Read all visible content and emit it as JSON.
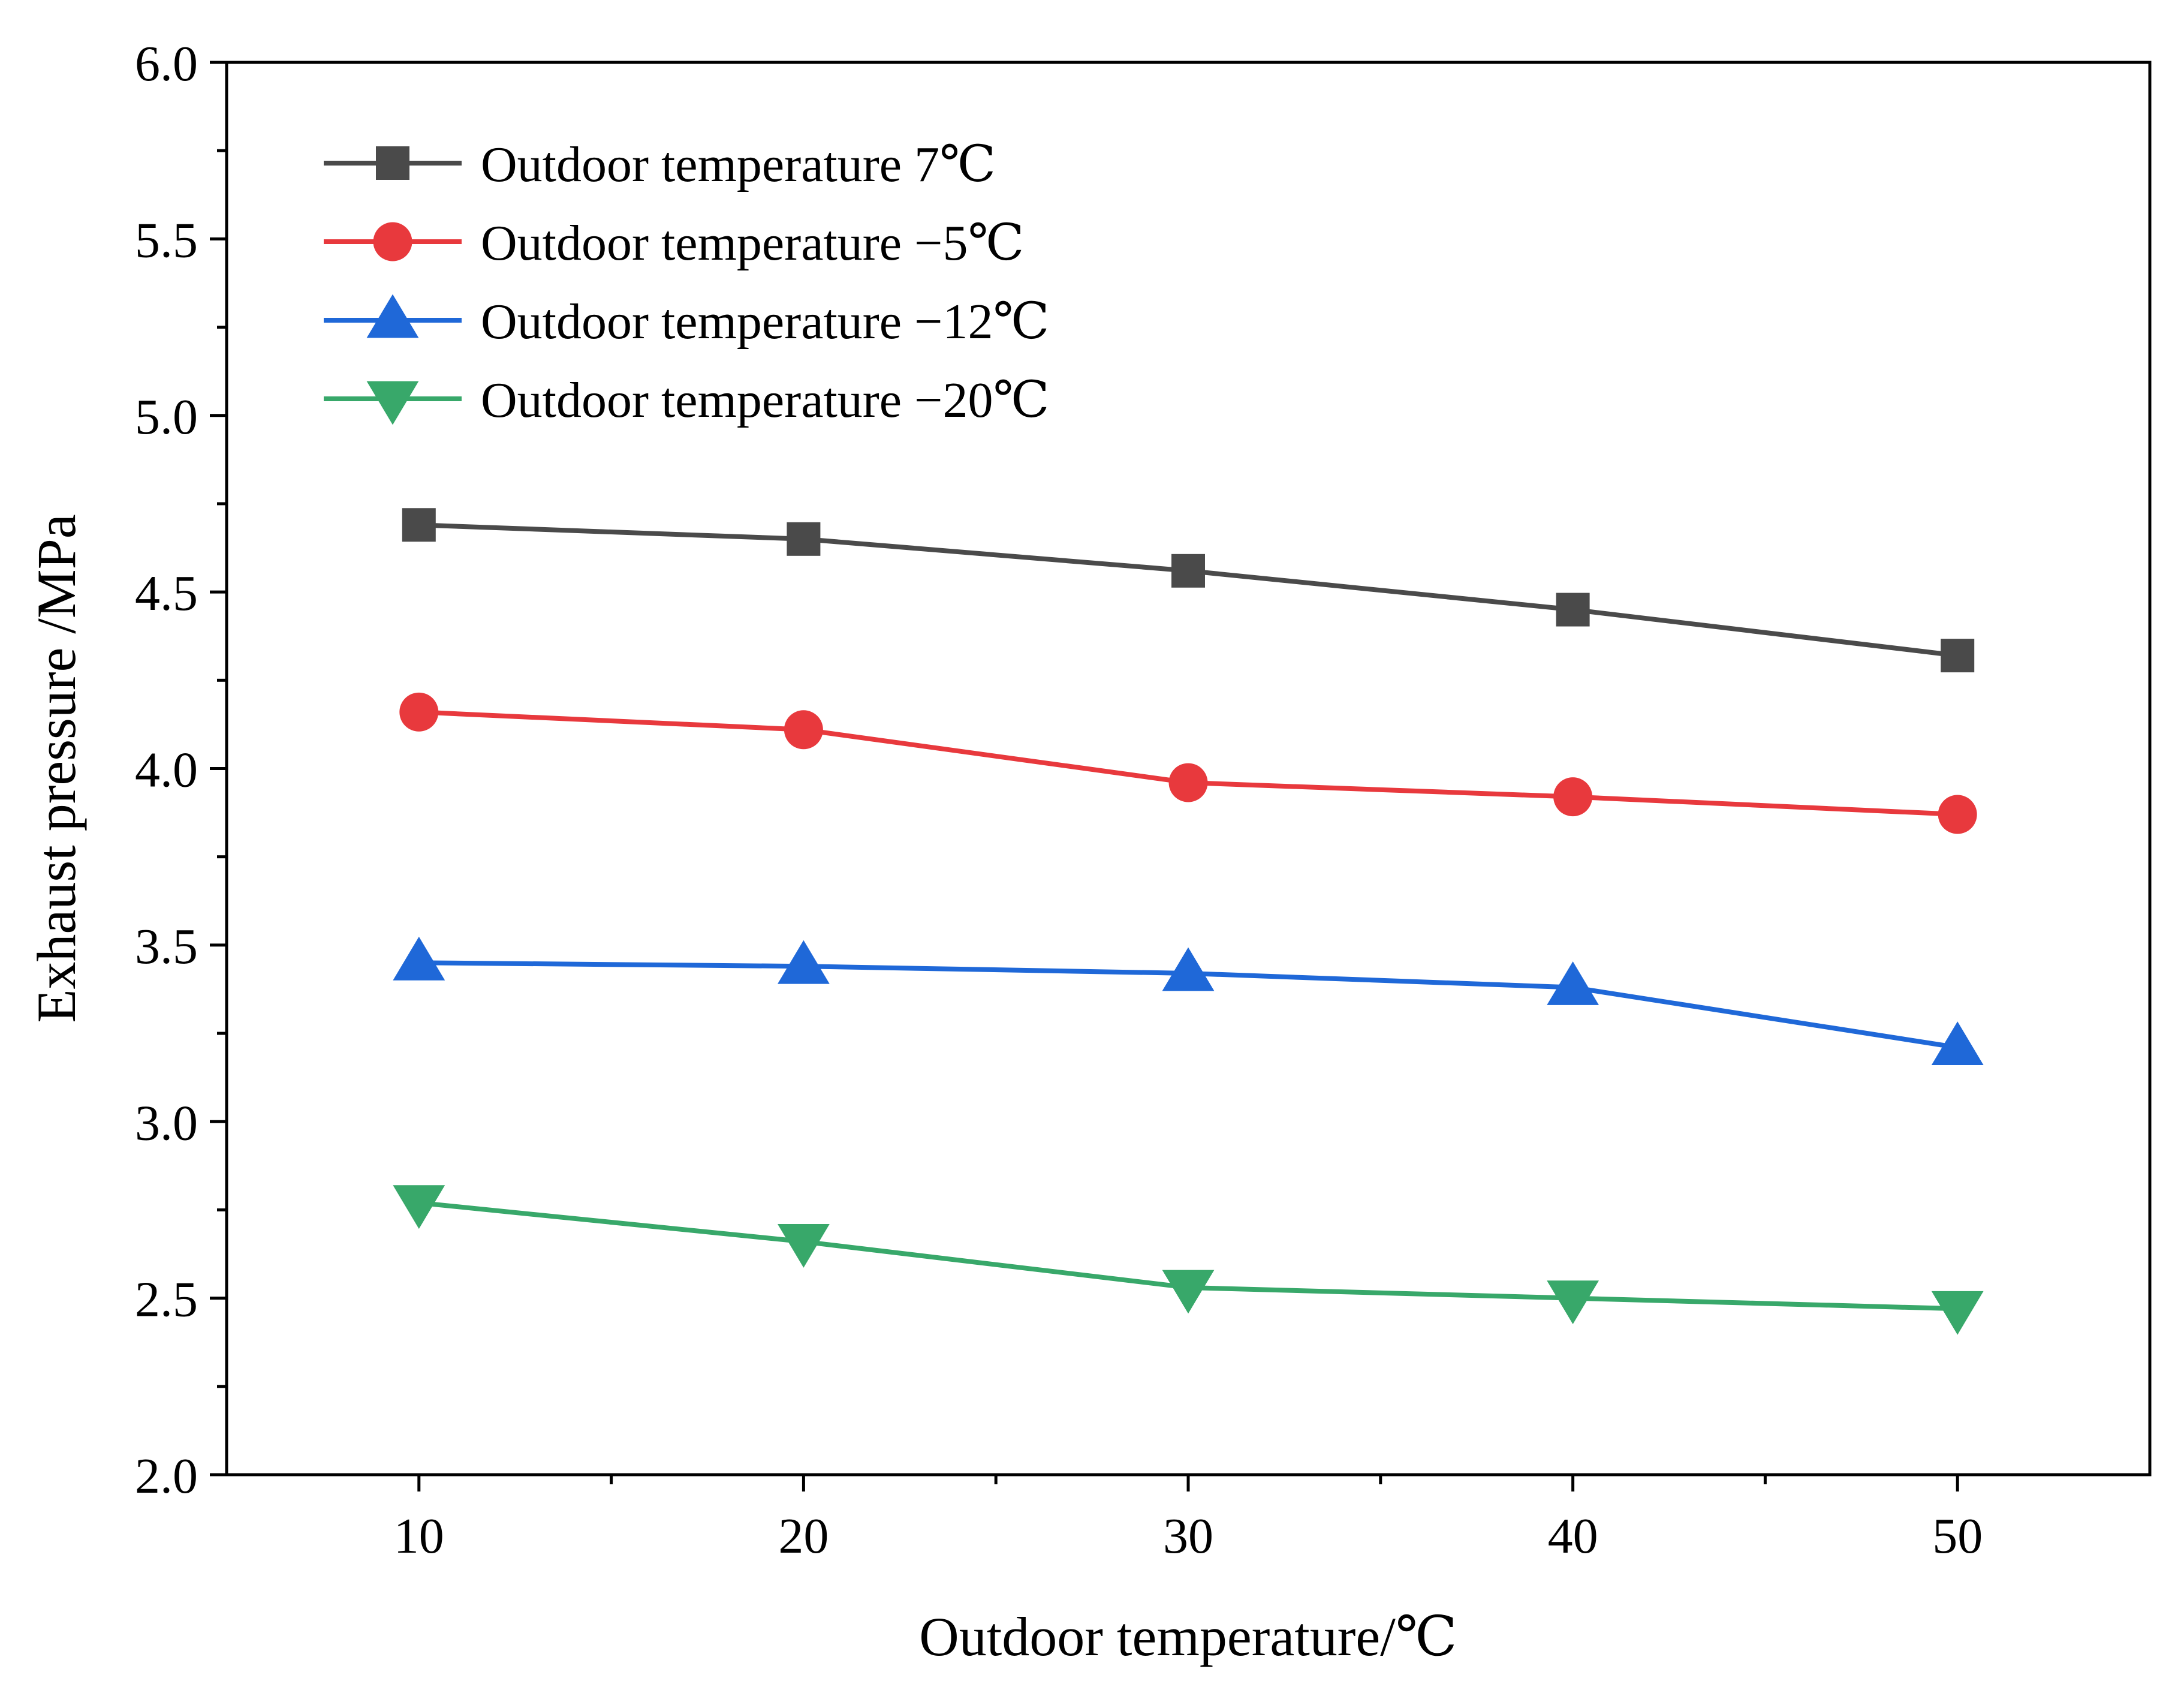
{
  "chart_data": {
    "type": "line",
    "title": "",
    "xlabel": "Outdoor temperature/℃",
    "ylabel": "Exhaust pressure /MPa",
    "x": [
      10,
      20,
      30,
      40,
      50
    ],
    "xlim": [
      5,
      55
    ],
    "ylim": [
      2.0,
      6.0
    ],
    "xticks": [
      10,
      20,
      30,
      40,
      50
    ],
    "xtick_labels": [
      "10",
      "20",
      "30",
      "40",
      "50"
    ],
    "yticks": [
      2.0,
      2.5,
      3.0,
      3.5,
      4.0,
      4.5,
      5.0,
      5.5,
      6.0
    ],
    "ytick_labels": [
      "2.0",
      "2.5",
      "3.0",
      "3.5",
      "4.0",
      "4.5",
      "5.0",
      "5.5",
      "6.0"
    ],
    "grid": false,
    "legend_position": "top-left",
    "series": [
      {
        "name": "Outdoor temperature 7℃",
        "marker": "square",
        "color": "#4a4a4a",
        "values": [
          4.69,
          4.65,
          4.56,
          4.45,
          4.32
        ]
      },
      {
        "name": "Outdoor temperature −5℃",
        "marker": "circle",
        "color": "#e8393d",
        "values": [
          4.16,
          4.11,
          3.96,
          3.92,
          3.87
        ]
      },
      {
        "name": "Outdoor temperature −12℃",
        "marker": "triangle-up",
        "color": "#1f68d8",
        "values": [
          3.45,
          3.44,
          3.42,
          3.38,
          3.21
        ]
      },
      {
        "name": "Outdoor temperature −20℃",
        "marker": "triangle-down",
        "color": "#38a86a",
        "values": [
          2.77,
          2.66,
          2.53,
          2.5,
          2.47
        ]
      }
    ]
  }
}
